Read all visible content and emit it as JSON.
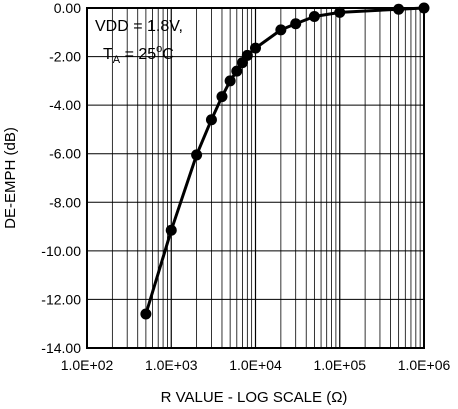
{
  "chart_data": {
    "type": "line",
    "xlabel": "R VALUE - LOG SCALE (Ω)",
    "ylabel": "DE-EMPH (dB)",
    "xscale": "log",
    "xlim": [
      100,
      1000000
    ],
    "ylim": [
      -14,
      0
    ],
    "grid": true,
    "x_tick_labels": [
      "1.0E+02",
      "1.0E+03",
      "1.0E+04",
      "1.0E+05",
      "1.0E+06"
    ],
    "y_tick_labels": [
      "0.00",
      "-2.00",
      "-4.00",
      "-6.00",
      "-8.00",
      "-10.00",
      "-12.00",
      "-14.00"
    ],
    "annotation": {
      "line1": "VDD = 1.8V,",
      "line2_main": "T",
      "line2_sub": "A",
      "line2_eq": " = 25",
      "line2_sup": "o",
      "line2_unit": "C"
    },
    "series": [
      {
        "color": "#000000",
        "x": [
          500,
          1000,
          2000,
          3000,
          4000,
          5000,
          6000,
          7000,
          8000,
          10000,
          20000,
          30000,
          50000,
          100000,
          500000,
          1000000
        ],
        "y": [
          -12.6,
          -9.15,
          -6.05,
          -4.6,
          -3.65,
          -3.0,
          -2.6,
          -2.25,
          -1.95,
          -1.65,
          -0.9,
          -0.65,
          -0.35,
          -0.18,
          -0.05,
          0.0
        ]
      }
    ]
  }
}
